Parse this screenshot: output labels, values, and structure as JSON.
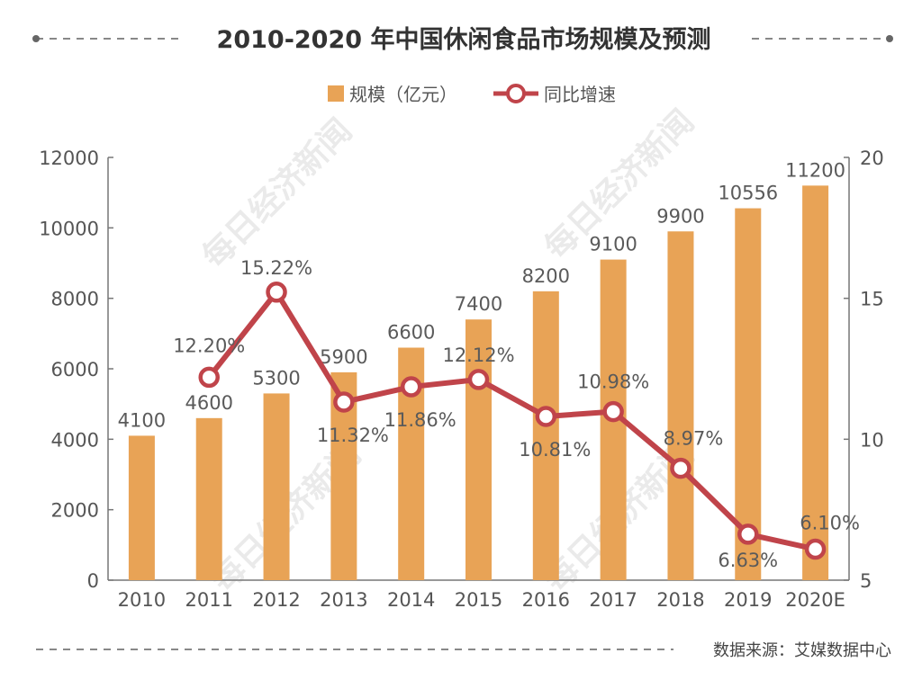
{
  "chart_data": {
    "type": "bar+line",
    "title": "2010-2020 年中国休闲食品市场规模及预测",
    "categories": [
      "2010",
      "2011",
      "2012",
      "2013",
      "2014",
      "2015",
      "2016",
      "2017",
      "2018",
      "2019",
      "2020E"
    ],
    "series": [
      {
        "name": "规模（亿元）",
        "kind": "bar",
        "axis": "left",
        "values": [
          4100,
          4600,
          5300,
          5900,
          6600,
          7400,
          8200,
          9100,
          9900,
          10556,
          11200
        ],
        "labels": [
          "4100",
          "4600",
          "5300",
          "5900",
          "6600",
          "7400",
          "8200",
          "9100",
          "9900",
          "10556",
          "11200"
        ]
      },
      {
        "name": "同比增速",
        "kind": "line",
        "axis": "right",
        "values": [
          null,
          12.2,
          15.22,
          11.32,
          11.86,
          12.12,
          10.81,
          10.98,
          8.97,
          6.63,
          6.1
        ],
        "labels": [
          "",
          "12.20%",
          "15.22%",
          "11.32%",
          "11.86%",
          "12.12%",
          "10.81%",
          "10.98%",
          "8.97%",
          "6.63%",
          "6.10%"
        ]
      }
    ],
    "y_left": {
      "min": 0,
      "max": 12000,
      "ticks": [
        "0",
        "2000",
        "4000",
        "6000",
        "8000",
        "10000",
        "12000"
      ]
    },
    "y_right": {
      "min": 5,
      "max": 20,
      "ticks": [
        "5",
        "10",
        "15",
        "20"
      ]
    },
    "legend_position": "top-center",
    "grid": false,
    "colors": {
      "bar": "#E8A356",
      "line": "#C0444A",
      "axis": "#777777"
    },
    "source": "数据来源：艾媒数据中心",
    "watermark": "每日经济新闻"
  }
}
